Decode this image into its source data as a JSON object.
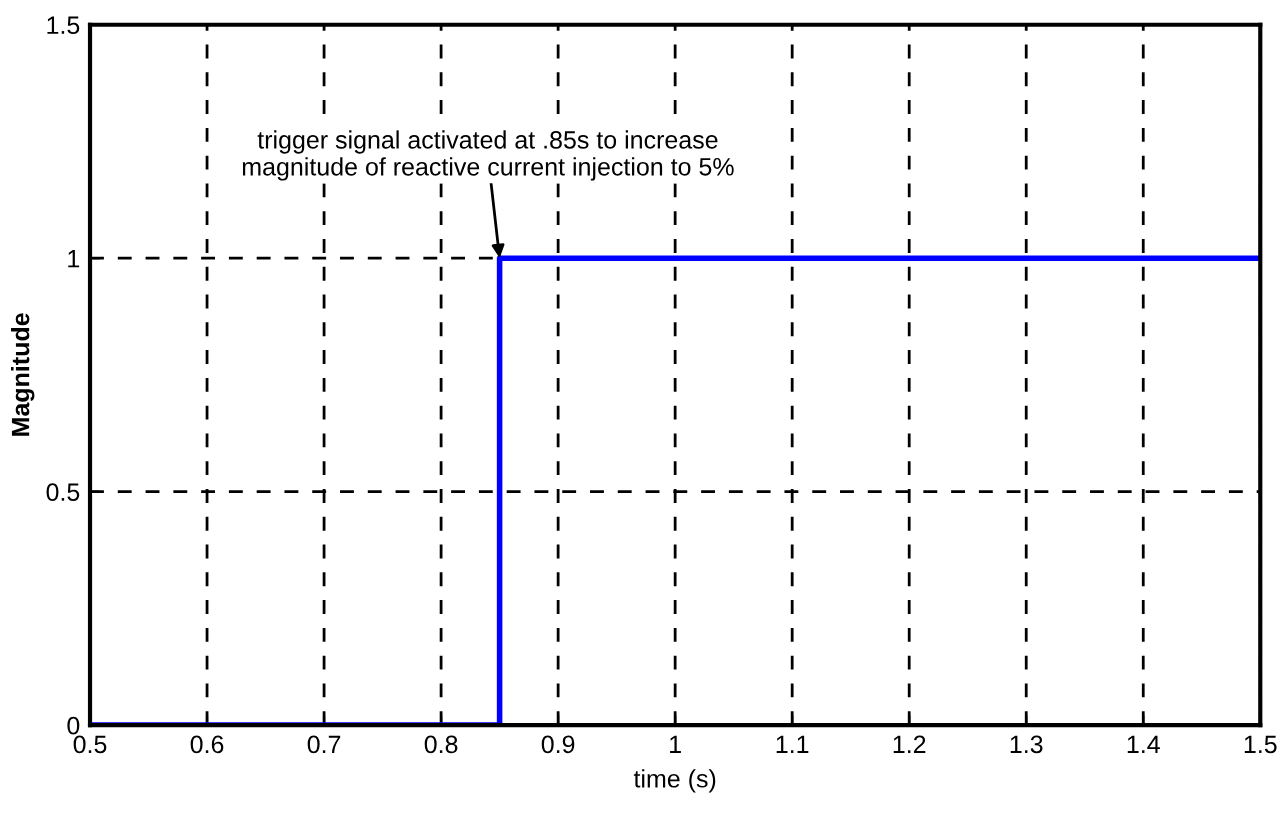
{
  "chart_data": {
    "type": "step",
    "xlabel": "time (s)",
    "ylabel": "Magnitude",
    "x": [
      0.5,
      0.85,
      1.5
    ],
    "series": [
      {
        "color": "#0000ff",
        "values": [
          0,
          1,
          1
        ]
      }
    ],
    "xlim": [
      0.5,
      1.5
    ],
    "xticks": [
      0.5,
      0.6,
      0.7,
      0.8,
      0.9,
      1,
      1.1,
      1.2,
      1.3,
      1.4,
      1.5
    ],
    "ylim": [
      0,
      1.5
    ],
    "yticks": [
      0,
      0.5,
      1,
      1.5
    ],
    "grid": true,
    "annotations": [
      {
        "text": "trigger signal activated at .85s to increase\nmagnitude of reactive current injection to 5%",
        "x": 0.85,
        "y": 1
      }
    ]
  }
}
